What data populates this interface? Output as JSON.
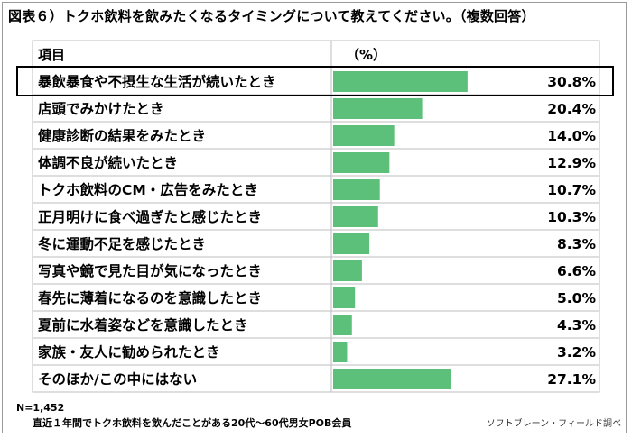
{
  "title": "図表６）トクホ飲料を飲みたくなるタイミングについて教えてください。（複数回答）",
  "chart_data": {
    "type": "bar",
    "orientation": "horizontal",
    "header_item": "項目",
    "header_unit": "（%）",
    "categories": [
      "暴飲暴食や不摂生な生活が続いたとき",
      "店頭でみかけたとき",
      "健康診断の結果をみたとき",
      "体調不良が続いたとき",
      "トクホ飲料のCM・広告をみたとき",
      "正月明けに食べ過ぎたと感じたとき",
      "冬に運動不足を感じたとき",
      "写真や鏡で見た目が気になったとき",
      "春先に薄着になるのを意識したとき",
      "夏前に水着姿などを意識したとき",
      "家族・友人に勧められたとき",
      "そのほか/この中にはない"
    ],
    "values": [
      30.8,
      20.4,
      14.0,
      12.9,
      10.7,
      10.3,
      8.3,
      6.6,
      5.0,
      4.3,
      3.2,
      27.1
    ],
    "value_labels": [
      "30.8%",
      "20.4%",
      "14.0%",
      "12.9%",
      "10.7%",
      "10.3%",
      "8.3%",
      "6.6%",
      "5.0%",
      "4.3%",
      "3.2%",
      "27.1%"
    ],
    "xlim": [
      0,
      60
    ],
    "highlighted_index": 0,
    "bar_color": "#5dc07a",
    "grid_color": "#bdbdbd"
  },
  "footer": {
    "n": "N=1,452",
    "description": "直近１年間でトクホ飲料を飲んだことがある20代～60代男女POB会員",
    "source": "ソフトブレーン・フィールド調べ"
  }
}
